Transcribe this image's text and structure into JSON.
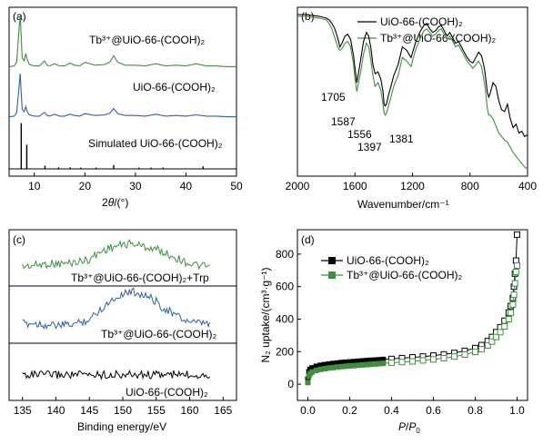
{
  "chart_data": [
    {
      "panel": "(a)",
      "type": "line",
      "xlabel_main": "2",
      "xlabel_italic": "θ",
      "xlabel_tail": "/(°)",
      "xlim": [
        5,
        50
      ],
      "xticks": [
        "10",
        "20",
        "30",
        "40",
        "50"
      ],
      "series": [
        {
          "name": "Tb³⁺@UiO-66-(COOH)₂",
          "color": "#3f8f3f",
          "x": [
            5,
            6,
            6.5,
            7,
            7.2,
            7.4,
            7.6,
            8,
            8.3,
            8.6,
            9,
            10,
            11,
            12,
            12.5,
            13,
            14,
            15,
            16,
            17,
            18,
            19,
            20,
            22,
            24,
            25,
            25.7,
            26.5,
            28,
            30,
            32,
            34,
            36,
            38,
            40,
            42,
            44,
            46,
            48,
            50
          ],
          "y": [
            0.1,
            0.15,
            0.4,
            2.8,
            3.6,
            2.2,
            0.7,
            0.5,
            1.0,
            0.6,
            0.25,
            0.15,
            0.15,
            0.5,
            0.2,
            0.15,
            0.3,
            0.15,
            0.15,
            0.35,
            0.2,
            0.15,
            0.4,
            0.2,
            0.25,
            0.45,
            0.85,
            0.4,
            0.2,
            0.2,
            0.15,
            0.3,
            0.15,
            0.2,
            0.15,
            0.3,
            0.15,
            0.15,
            0.1,
            0.1
          ]
        },
        {
          "name": "UiO-66-(COOH)₂",
          "color": "#2f5fa8",
          "x": [
            5,
            6,
            6.5,
            7,
            7.2,
            7.4,
            7.6,
            8,
            8.3,
            8.6,
            9,
            10,
            11,
            12,
            12.5,
            13,
            14,
            15,
            16,
            17,
            18,
            19,
            20,
            22,
            24,
            25,
            25.7,
            26.5,
            28,
            30,
            32,
            34,
            36,
            38,
            40,
            42,
            44,
            46,
            48,
            50
          ],
          "y": [
            0.1,
            0.15,
            0.4,
            2.6,
            3.5,
            2.0,
            0.7,
            0.5,
            0.9,
            0.5,
            0.25,
            0.15,
            0.15,
            0.45,
            0.2,
            0.15,
            0.3,
            0.15,
            0.15,
            0.3,
            0.2,
            0.15,
            0.35,
            0.2,
            0.25,
            0.4,
            0.75,
            0.35,
            0.2,
            0.2,
            0.15,
            0.3,
            0.15,
            0.2,
            0.15,
            0.25,
            0.15,
            0.15,
            0.1,
            0.1
          ]
        },
        {
          "name": "Simulated UiO-66-(COOH)₂",
          "type": "stick",
          "color": "#000000",
          "x": [
            7.4,
            8.5,
            12.1,
            14.8,
            17.1,
            19.2,
            22.2,
            25.7,
            30.7,
            33.1,
            35.5,
            43.4
          ],
          "y": [
            3.6,
            1.9,
            0.25,
            0.12,
            0.12,
            0.1,
            0.1,
            0.3,
            0.1,
            0.1,
            0.1,
            0.2
          ]
        }
      ]
    },
    {
      "panel": "(b)",
      "type": "line",
      "xlabel": "Wavenumber/cm⁻¹",
      "xlim": [
        2000,
        400
      ],
      "xticks": [
        "2000",
        "1600",
        "1200",
        "800",
        "400"
      ],
      "annotations": [
        "1705",
        "1587",
        "1556",
        "1397",
        "1381"
      ],
      "series": [
        {
          "name": "UiO-66-(COOH)₂",
          "color": "#000000",
          "x": [
            2000,
            1950,
            1900,
            1850,
            1800,
            1780,
            1760,
            1740,
            1720,
            1705,
            1690,
            1670,
            1650,
            1630,
            1610,
            1600,
            1587,
            1570,
            1556,
            1540,
            1520,
            1505,
            1490,
            1475,
            1460,
            1440,
            1420,
            1405,
            1397,
            1390,
            1381,
            1370,
            1350,
            1330,
            1300,
            1270,
            1240,
            1210,
            1180,
            1150,
            1120,
            1100,
            1080,
            1060,
            1040,
            1020,
            1000,
            980,
            960,
            940,
            920,
            900,
            880,
            860,
            840,
            820,
            800,
            780,
            760,
            740,
            720,
            700,
            690,
            680,
            670,
            660,
            640,
            620,
            600,
            580,
            560,
            540,
            520,
            500,
            480,
            460,
            440,
            420,
            400
          ],
          "y": [
            98,
            98,
            97.5,
            97,
            96,
            95,
            93,
            90,
            85,
            80,
            82,
            86,
            87,
            84,
            75,
            68,
            60,
            68,
            75,
            83,
            88,
            86,
            80,
            70,
            65,
            66,
            62,
            55,
            48,
            47,
            48,
            52,
            58,
            64,
            70,
            80,
            78,
            74,
            82,
            88,
            92,
            93,
            90,
            88,
            89,
            91,
            92,
            89,
            86,
            88,
            85,
            82,
            83,
            80,
            77,
            74,
            72,
            71,
            74,
            77,
            75,
            68,
            62,
            55,
            52,
            54,
            60,
            58,
            50,
            45,
            44,
            48,
            40,
            35,
            37,
            32,
            33,
            30,
            31
          ]
        },
        {
          "name": "Tb³⁺@UiO-66-(COOH)₂",
          "color": "#3f8f3f",
          "x": [
            2000,
            1950,
            1900,
            1850,
            1800,
            1780,
            1760,
            1740,
            1720,
            1705,
            1690,
            1670,
            1650,
            1630,
            1610,
            1600,
            1587,
            1570,
            1556,
            1540,
            1520,
            1505,
            1490,
            1475,
            1460,
            1440,
            1420,
            1405,
            1397,
            1390,
            1381,
            1370,
            1350,
            1330,
            1300,
            1270,
            1240,
            1210,
            1180,
            1150,
            1120,
            1100,
            1080,
            1060,
            1040,
            1020,
            1000,
            980,
            960,
            940,
            920,
            900,
            880,
            860,
            840,
            820,
            800,
            780,
            760,
            740,
            720,
            700,
            690,
            680,
            670,
            660,
            640,
            620,
            600,
            580,
            560,
            540,
            520,
            500,
            480,
            460,
            440,
            420,
            400
          ],
          "y": [
            97,
            97,
            96.5,
            96,
            95,
            93,
            90,
            85,
            80,
            78,
            79,
            82,
            83,
            80,
            70,
            62,
            55,
            62,
            68,
            76,
            82,
            80,
            73,
            64,
            58,
            60,
            56,
            48,
            43,
            42,
            43,
            46,
            52,
            58,
            64,
            74,
            72,
            69,
            78,
            84,
            89,
            90,
            88,
            86,
            87,
            89,
            90,
            87,
            84,
            86,
            83,
            80,
            81,
            78,
            75,
            72,
            70,
            68,
            70,
            72,
            69,
            60,
            54,
            46,
            42,
            42,
            40,
            36,
            32,
            30,
            28,
            27,
            24,
            21,
            19,
            17,
            15,
            13,
            12
          ]
        }
      ]
    },
    {
      "panel": "(c)",
      "type": "line",
      "xlabel": "Binding energy/eV",
      "xlim": [
        133,
        167
      ],
      "xticks": [
        "135",
        "140",
        "145",
        "150",
        "155",
        "160",
        "165"
      ],
      "series": [
        {
          "name": "Tb³⁺@UiO-66-(COOH)₂+Trp",
          "color": "#3f8f3f",
          "x": [
            135,
            137,
            139,
            141,
            143,
            145,
            146,
            147,
            148,
            149,
            150,
            151,
            152,
            153,
            154,
            155,
            156,
            157,
            158,
            159,
            160,
            161,
            162,
            163
          ],
          "y": [
            0.2,
            0.25,
            0.3,
            0.3,
            0.35,
            0.45,
            0.6,
            0.75,
            0.85,
            0.9,
            0.95,
            1.0,
            0.97,
            0.9,
            0.85,
            0.8,
            0.7,
            0.6,
            0.5,
            0.4,
            0.3,
            0.25,
            0.2,
            0.2
          ]
        },
        {
          "name": "Tb³⁺@UiO-66-(COOH)₂",
          "color": "#2f5fa8",
          "x": [
            135,
            137,
            139,
            141,
            143,
            145,
            146,
            147,
            148,
            149,
            150,
            151,
            152,
            153,
            154,
            155,
            156,
            157,
            158,
            159,
            160,
            161,
            162,
            163
          ],
          "y": [
            0.2,
            0.2,
            0.15,
            0.15,
            0.2,
            0.3,
            0.45,
            0.6,
            0.75,
            0.85,
            0.95,
            1.0,
            0.98,
            0.92,
            0.85,
            0.75,
            0.6,
            0.5,
            0.4,
            0.3,
            0.25,
            0.2,
            0.2,
            0.18
          ]
        },
        {
          "name": "UiO-66-(COOH)₂",
          "color": "#000000",
          "x": [
            135,
            137,
            139,
            141,
            143,
            145,
            147,
            149,
            151,
            153,
            155,
            157,
            159,
            161,
            163
          ],
          "y": [
            0.3,
            0.3,
            0.3,
            0.3,
            0.3,
            0.3,
            0.3,
            0.3,
            0.3,
            0.3,
            0.3,
            0.3,
            0.3,
            0.3,
            0.3
          ]
        }
      ]
    },
    {
      "panel": "(d)",
      "type": "scatter",
      "ylabel": "N₂ uptake/(cm³·g⁻¹)",
      "xlabel_italic_1": "P",
      "xlabel_mid": "/",
      "xlabel_italic_2": "P",
      "xlabel_sub": "0",
      "xlim": [
        -0.05,
        1.05
      ],
      "ylim": [
        -100,
        950
      ],
      "xticks": [
        "0.0",
        "0.2",
        "0.4",
        "0.6",
        "0.8",
        "1.0"
      ],
      "yticks": [
        "0",
        "200",
        "400",
        "600",
        "800"
      ],
      "series": [
        {
          "name": "UiO-66-(COOH)₂",
          "color": "#000000",
          "x_ads": [
            0.0,
            0.005,
            0.01,
            0.02,
            0.04,
            0.06,
            0.08,
            0.1,
            0.12,
            0.14,
            0.16,
            0.18,
            0.2,
            0.22,
            0.24,
            0.26,
            0.28,
            0.3,
            0.32,
            0.34,
            0.36
          ],
          "y_ads": [
            30,
            75,
            90,
            100,
            110,
            116,
            120,
            124,
            127,
            130,
            133,
            135,
            137,
            139,
            141,
            143,
            145,
            147,
            148,
            150,
            152
          ],
          "x_des": [
            0.4,
            0.45,
            0.5,
            0.55,
            0.6,
            0.65,
            0.7,
            0.75,
            0.8,
            0.83,
            0.86,
            0.88,
            0.9,
            0.92,
            0.94,
            0.96,
            0.97,
            0.98,
            0.985,
            0.99,
            0.995,
            1.0
          ],
          "y_des": [
            155,
            160,
            165,
            170,
            176,
            183,
            192,
            205,
            222,
            240,
            265,
            290,
            320,
            350,
            390,
            440,
            480,
            530,
            600,
            680,
            760,
            920
          ]
        },
        {
          "name": "Tb³⁺@UiO-66-(COOH)₂",
          "color": "#3f8f3f",
          "x_ads": [
            0.0,
            0.005,
            0.01,
            0.02,
            0.04,
            0.06,
            0.08,
            0.1,
            0.12,
            0.14,
            0.16,
            0.18,
            0.2,
            0.22,
            0.24,
            0.26,
            0.28,
            0.3,
            0.32,
            0.34,
            0.36
          ],
          "y_ads": [
            10,
            50,
            65,
            75,
            85,
            91,
            95,
            99,
            102,
            105,
            108,
            110,
            112,
            114,
            116,
            118,
            120,
            122,
            124,
            126,
            128
          ],
          "x_des": [
            0.4,
            0.45,
            0.5,
            0.55,
            0.6,
            0.65,
            0.7,
            0.75,
            0.8,
            0.83,
            0.86,
            0.88,
            0.9,
            0.92,
            0.94,
            0.96,
            0.97,
            0.98,
            0.985,
            0.99,
            0.995,
            1.0
          ],
          "y_des": [
            132,
            136,
            140,
            146,
            152,
            160,
            170,
            182,
            198,
            215,
            238,
            262,
            290,
            320,
            355,
            400,
            440,
            490,
            550,
            620,
            690,
            730
          ]
        }
      ]
    }
  ]
}
